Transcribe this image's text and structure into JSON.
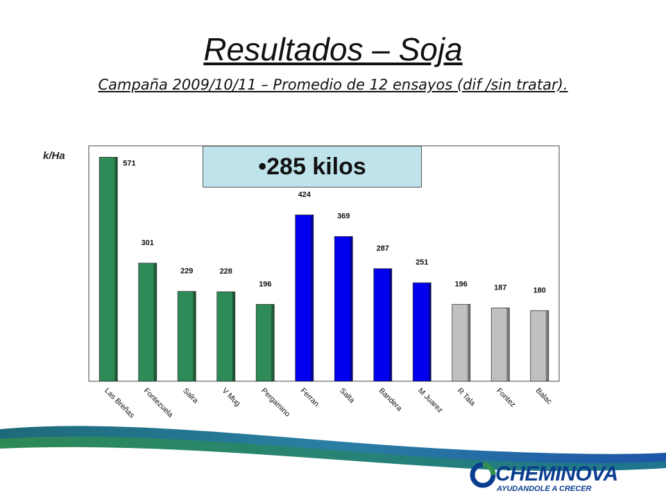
{
  "slide": {
    "title": "Resultados – Soja",
    "subtitle": "Campaña 2009/10/11 – Promedio de 12 ensayos (dif /sin tratar).",
    "callout": "•285 kilos",
    "brand": "CHEMINOVA",
    "tagline": "AYUDANDOLE A CRECER"
  },
  "chart_data": {
    "type": "bar",
    "ylabel": "k/Ha",
    "ylim": [
      0,
      600
    ],
    "categories": [
      "Las Breñas",
      "Fontezuela",
      "Salra",
      "V Mug",
      "Pergamino",
      "Ferran",
      "Salta",
      "Bandera",
      "M Juarez",
      "R Tala",
      "Fontez",
      "Balac"
    ],
    "values": [
      571,
      301,
      229,
      228,
      196,
      424,
      369,
      287,
      251,
      196,
      187,
      180
    ],
    "bar_colors": [
      "#2e8b57",
      "#2e8b57",
      "#2e8b57",
      "#2e8b57",
      "#2e8b57",
      "#0000ee",
      "#0000ee",
      "#0000ee",
      "#0000ee",
      "#c0c0c0",
      "#c0c0c0",
      "#c0c0c0"
    ],
    "value_labels": [
      571,
      301,
      229,
      228,
      196,
      424,
      369,
      287,
      251,
      196,
      187,
      180
    ],
    "grid": false
  }
}
